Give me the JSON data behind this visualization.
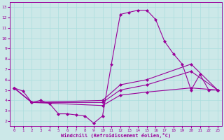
{
  "bg_color": "#cce8e8",
  "line_color": "#990099",
  "grid_color": "#aadddd",
  "xlabel": "Windchill (Refroidissement éolien,°C)",
  "xlim": [
    -0.5,
    23.5
  ],
  "ylim": [
    1.5,
    13.5
  ],
  "yticks": [
    2,
    3,
    4,
    5,
    6,
    7,
    8,
    9,
    10,
    11,
    12,
    13
  ],
  "xticks": [
    0,
    1,
    2,
    3,
    4,
    5,
    6,
    7,
    8,
    9,
    10,
    11,
    12,
    13,
    14,
    15,
    16,
    17,
    18,
    19,
    20,
    21,
    22,
    23
  ],
  "line1_x": [
    0,
    1,
    2,
    3,
    4,
    5,
    6,
    7,
    8,
    9,
    10,
    11,
    12,
    13,
    14,
    15,
    16,
    17,
    18,
    19,
    20,
    21,
    22,
    23
  ],
  "line1_y": [
    5.2,
    4.9,
    3.8,
    4.0,
    3.7,
    2.7,
    2.7,
    2.6,
    2.5,
    1.8,
    2.5,
    7.5,
    12.3,
    12.5,
    12.7,
    12.7,
    11.8,
    9.7,
    8.5,
    7.5,
    5.0,
    6.5,
    5.0,
    5.0
  ],
  "line2_x": [
    0,
    2,
    10,
    12,
    15,
    20,
    23
  ],
  "line2_y": [
    5.2,
    3.8,
    4.0,
    5.5,
    6.0,
    7.5,
    5.0
  ],
  "line3_x": [
    0,
    2,
    10,
    12,
    15,
    20,
    23
  ],
  "line3_y": [
    5.2,
    3.8,
    3.8,
    5.0,
    5.5,
    6.8,
    5.0
  ],
  "line4_x": [
    0,
    2,
    10,
    12,
    15,
    20,
    23
  ],
  "line4_y": [
    5.2,
    3.8,
    3.5,
    4.5,
    4.8,
    5.2,
    5.0
  ],
  "markersize": 2.5
}
